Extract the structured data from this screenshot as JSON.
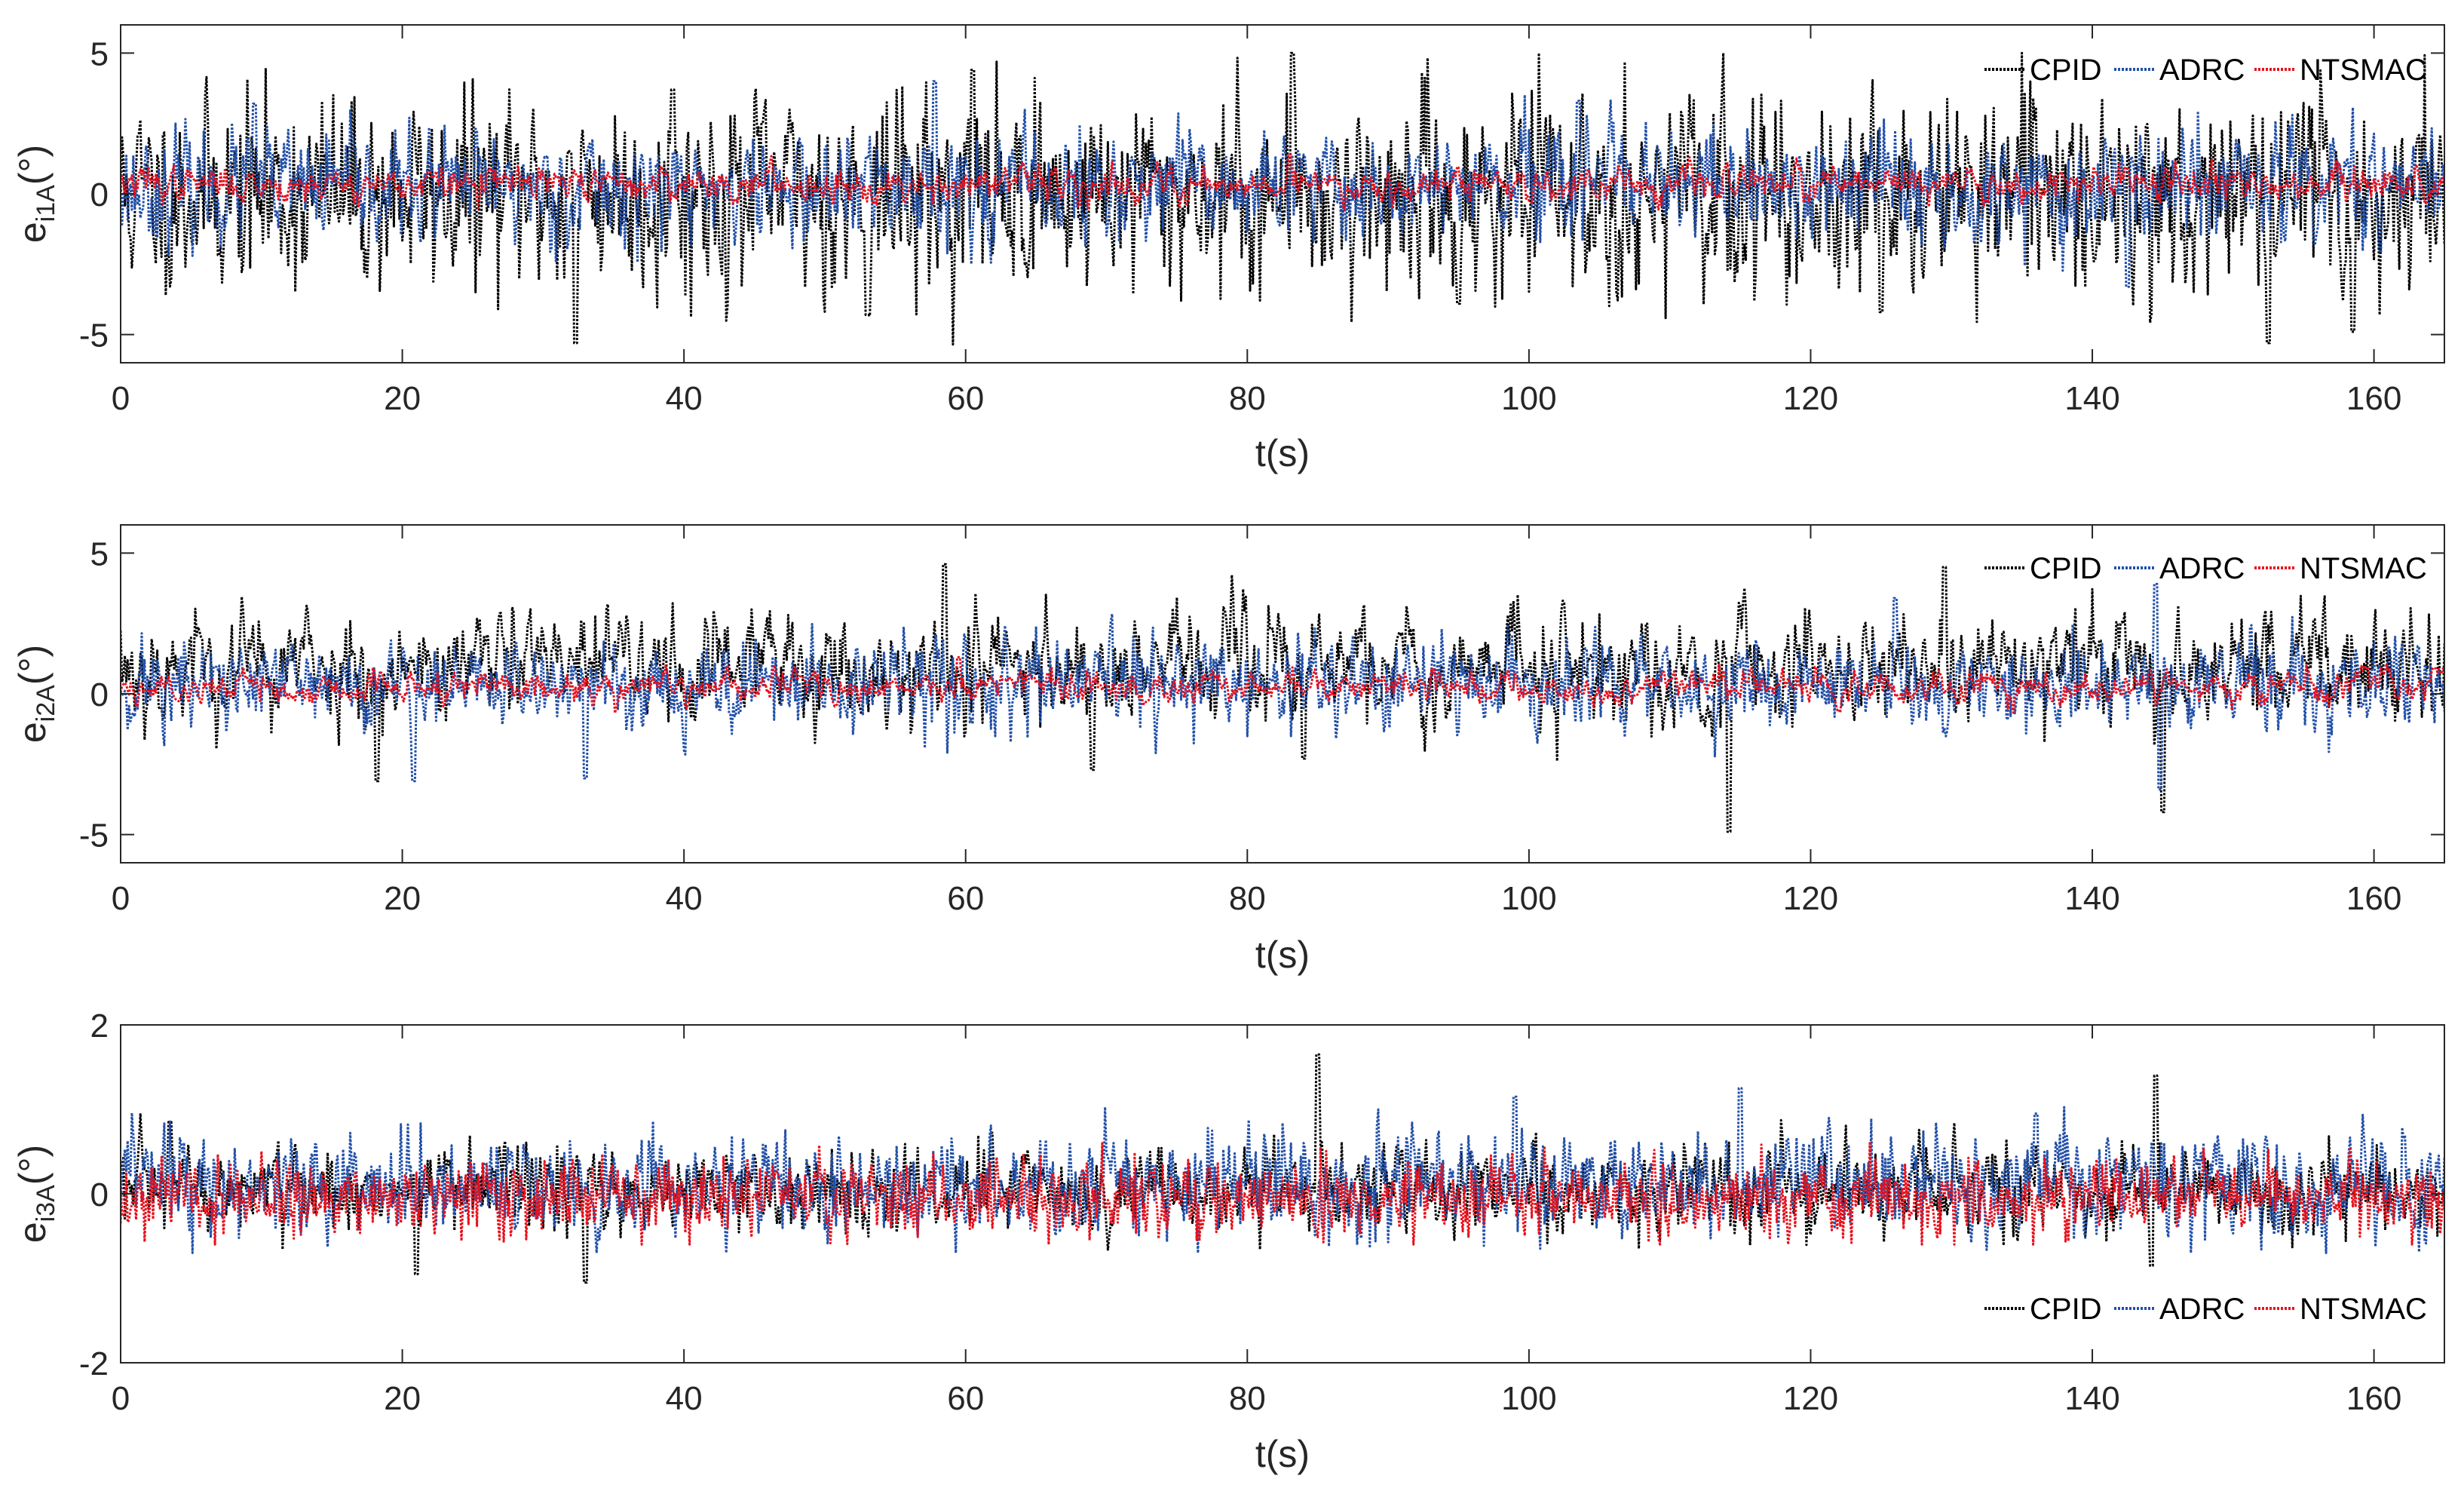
{
  "colors": {
    "CPID": "#000000",
    "ADRC": "#2250A8",
    "NTSMAC": "#E8101C",
    "axis": "#262626"
  },
  "chart_data": [
    {
      "type": "line",
      "ylabel_main": "e",
      "ylabel_sub": "i1A",
      "ylabel_unit": "(°)",
      "xlabel": "t(s)",
      "xlim": [
        0,
        165
      ],
      "ylim": [
        -6,
        6
      ],
      "xticks": [
        0,
        20,
        40,
        60,
        80,
        100,
        120,
        140,
        160
      ],
      "xtick_labels": [
        "0",
        "20",
        "40",
        "60",
        "80",
        "100",
        "120",
        "140",
        "160"
      ],
      "yticks": [
        -5,
        0,
        5
      ],
      "ytick_labels": [
        "-5",
        "0",
        "5"
      ],
      "legend_position": "top-right",
      "legend": [
        "CPID",
        "ADRC",
        "NTSMAC"
      ],
      "series": [
        {
          "name": "CPID",
          "mean": 0,
          "std": 1.7,
          "corr": 0.25,
          "min": -5.4,
          "max": 5.0,
          "seed": 11,
          "spikes": [
            [
              32.3,
              -5.3
            ],
            [
              39.2,
              3.7
            ],
            [
              53,
              -4.3
            ],
            [
              60.5,
              4.4
            ],
            [
              83.2,
              5.0
            ],
            [
              95,
              -3.9
            ],
            [
              125,
              -4.2
            ],
            [
              152.5,
              -5.3
            ],
            [
              158.5,
              -4.9
            ]
          ]
        },
        {
          "name": "ADRC",
          "mean": 0.2,
          "std": 0.95,
          "corr": 0.35,
          "min": -3.5,
          "max": 4.0,
          "seed": 23,
          "spikes": [
            [
              9.5,
              3.2
            ],
            [
              57.8,
              4.1
            ],
            [
              103.5,
              3.3
            ],
            [
              142.5,
              -3.3
            ]
          ]
        },
        {
          "name": "NTSMAC",
          "mean": 0.35,
          "std": 0.3,
          "corr": 0.6,
          "min": -1.0,
          "max": 1.5,
          "seed": 37,
          "spikes": [
            [
              83,
              1.4
            ]
          ]
        }
      ]
    },
    {
      "type": "line",
      "ylabel_main": "e",
      "ylabel_sub": "i2A",
      "ylabel_unit": "(°)",
      "xlabel": "t(s)",
      "xlim": [
        0,
        165
      ],
      "ylim": [
        -6,
        6
      ],
      "xticks": [
        0,
        20,
        40,
        60,
        80,
        100,
        120,
        140,
        160
      ],
      "xtick_labels": [
        "0",
        "20",
        "40",
        "60",
        "80",
        "100",
        "120",
        "140",
        "160"
      ],
      "yticks": [
        -5,
        0,
        5
      ],
      "ytick_labels": [
        "-5",
        "0",
        "5"
      ],
      "legend_position": "top-right",
      "legend": [
        "CPID",
        "ADRC",
        "NTSMAC"
      ],
      "series": [
        {
          "name": "CPID",
          "mean": 1.0,
          "std": 1.05,
          "corr": 0.55,
          "min": -5.0,
          "max": 4.8,
          "seed": 53,
          "spikes": [
            [
              18.2,
              -3.1
            ],
            [
              58.5,
              4.6
            ],
            [
              69,
              -2.7
            ],
            [
              84,
              -2.3
            ],
            [
              114.2,
              -4.9
            ],
            [
              129.5,
              4.5
            ],
            [
              145,
              -4.2
            ]
          ]
        },
        {
          "name": "ADRC",
          "mean": 0.3,
          "std": 0.8,
          "corr": 0.35,
          "min": -3.5,
          "max": 3.9,
          "seed": 71,
          "spikes": [
            [
              20.8,
              -3.1
            ],
            [
              33,
              -3.0
            ],
            [
              126,
              3.4
            ],
            [
              144.5,
              3.9
            ],
            [
              144.8,
              -3.4
            ]
          ]
        },
        {
          "name": "NTSMAC",
          "mean": 0.25,
          "std": 0.3,
          "corr": 0.7,
          "min": -0.8,
          "max": 1.4,
          "seed": 89,
          "spikes": [
            [
              59.5,
              1.3
            ]
          ]
        }
      ]
    },
    {
      "type": "line",
      "ylabel_main": "e",
      "ylabel_sub": "i3A",
      "ylabel_unit": "(°)",
      "xlabel": "t(s)",
      "xlim": [
        0,
        165
      ],
      "ylim": [
        -2,
        2
      ],
      "xticks": [
        0,
        20,
        40,
        60,
        80,
        100,
        120,
        140,
        160
      ],
      "xtick_labels": [
        "0",
        "20",
        "40",
        "60",
        "80",
        "100",
        "120",
        "140",
        "160"
      ],
      "yticks": [
        -2,
        0,
        2
      ],
      "ytick_labels": [
        "-2",
        "0",
        "2"
      ],
      "legend_position": "bottom-right",
      "legend": [
        "CPID",
        "ADRC",
        "NTSMAC"
      ],
      "series": [
        {
          "name": "CPID",
          "mean": 0.05,
          "std": 0.25,
          "corr": 0.3,
          "min": -1.05,
          "max": 1.7,
          "seed": 97,
          "spikes": [
            [
              3.5,
              0.85
            ],
            [
              21,
              -0.95
            ],
            [
              33,
              -1.05
            ],
            [
              85,
              1.65
            ],
            [
              144.5,
              1.4
            ],
            [
              144.2,
              -0.85
            ]
          ]
        },
        {
          "name": "ADRC",
          "mean": 0.1,
          "std": 0.3,
          "corr": 0.3,
          "min": -0.7,
          "max": 1.3,
          "seed": 113,
          "spikes": [
            [
              99,
              1.15
            ],
            [
              115,
              1.25
            ],
            [
              136,
              0.95
            ]
          ]
        },
        {
          "name": "NTSMAC",
          "mean": -0.05,
          "std": 0.22,
          "corr": 0.2,
          "min": -0.6,
          "max": 0.6,
          "seed": 131,
          "spikes": []
        }
      ]
    }
  ]
}
